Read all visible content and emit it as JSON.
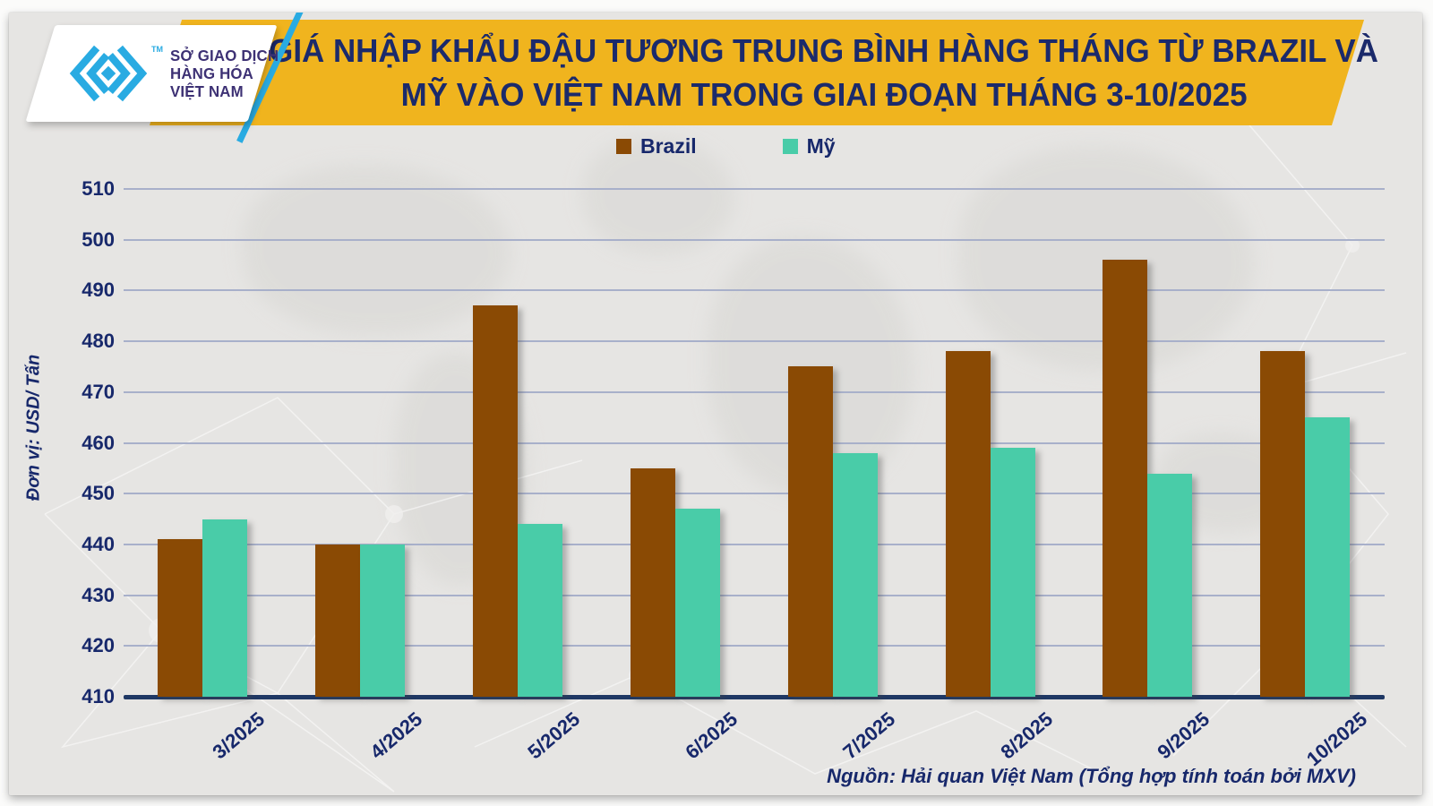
{
  "colors": {
    "background": "#e6e5e3",
    "banner_yellow": "#F0B41E",
    "navy_text": "#17286B",
    "logo_purple": "#3D3174",
    "logo_cyan": "#29ABE2",
    "gridline": "#a8b0ca",
    "axis": "#1F3864",
    "brazil_brown": "#8A4A04",
    "my_teal": "#49CCA8"
  },
  "header": {
    "logo": {
      "tm": "TM",
      "org_lines": [
        "SỞ GIAO DỊCH",
        "HÀNG HÓA",
        "VIỆT NAM"
      ]
    },
    "title_line1": "GIÁ NHẬP KHẨU ĐẬU TƯƠNG TRUNG BÌNH HÀNG THÁNG TỪ BRAZIL VÀ",
    "title_line2": "MỸ VÀO VIỆT NAM TRONG GIAI ĐOẠN THÁNG 3-10/2025"
  },
  "chart_data": {
    "type": "bar",
    "title": "GIÁ NHẬP KHẨU ĐẬU TƯƠNG TRUNG BÌNH HÀNG THÁNG TỪ BRAZIL VÀ MỸ VÀO VIỆT NAM TRONG GIAI ĐOẠN THÁNG 3-10/2025",
    "categories": [
      "3/2025",
      "4/2025",
      "5/2025",
      "6/2025",
      "7/2025",
      "8/2025",
      "9/2025",
      "10/2025"
    ],
    "series": [
      {
        "name": "Brazil",
        "color": "#8A4A04",
        "values": [
          441,
          440,
          487,
          455,
          475,
          478,
          496,
          478
        ]
      },
      {
        "name": "Mỹ",
        "color": "#49CCA8",
        "values": [
          445,
          440,
          444,
          447,
          458,
          459,
          454,
          465
        ]
      }
    ],
    "xlabel": "",
    "ylabel": "Đơn vị:  USD/ Tấn",
    "ylim": [
      410,
      510
    ],
    "ytick_step": 10,
    "grid": true,
    "legend_position": "top"
  },
  "footer": {
    "source": "Nguồn: Hải quan Việt Nam (Tổng hợp tính toán bởi MXV)"
  }
}
